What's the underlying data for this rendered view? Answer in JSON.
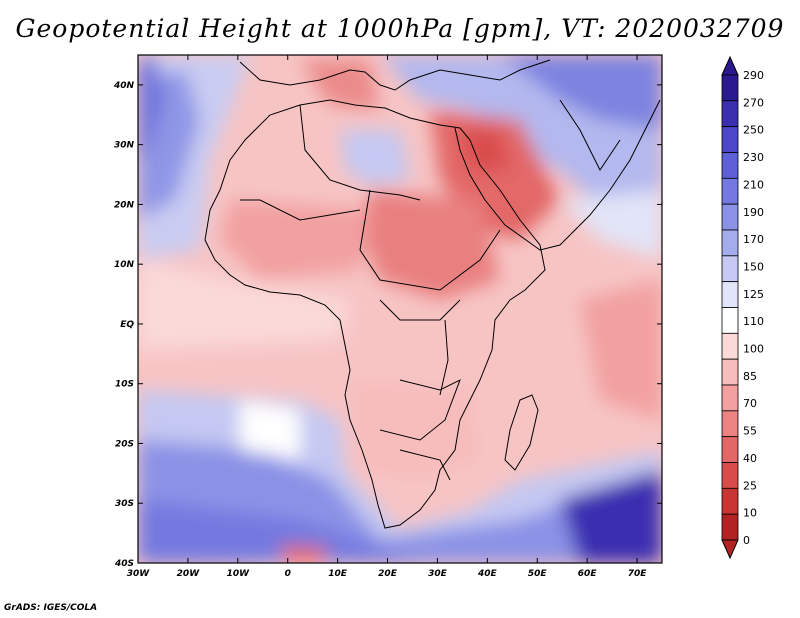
{
  "title": "Geopotential Height at 1000hPa [gpm], VT: 2020032709",
  "credit": "GrADS: IGES/COLA",
  "map": {
    "lon_labels": [
      "30W",
      "20W",
      "10W",
      "0",
      "10E",
      "20E",
      "30E",
      "40E",
      "50E",
      "60E",
      "70E"
    ],
    "lat_labels": [
      "40N",
      "30N",
      "20N",
      "10N",
      "EQ",
      "10S",
      "20S",
      "30S",
      "40S"
    ],
    "extent": {
      "lon": [
        -30,
        75
      ],
      "lat": [
        -40,
        45
      ]
    }
  },
  "colorbar": {
    "labels": [
      "290",
      "270",
      "250",
      "230",
      "210",
      "190",
      "170",
      "150",
      "125",
      "110",
      "100",
      "85",
      "70",
      "55",
      "40",
      "25",
      "10",
      "0"
    ],
    "colors": [
      "#2a1a8f",
      "#3b2fb0",
      "#4d46c8",
      "#5e60d8",
      "#7379e0",
      "#8b92e6",
      "#a5acec",
      "#c4c8f2",
      "#e2e4f8",
      "#ffffff",
      "#fbd9d9",
      "#f7bcbc",
      "#f2a0a0",
      "#eb8383",
      "#e36767",
      "#d94c4c",
      "#c83535",
      "#b22222"
    ]
  }
}
